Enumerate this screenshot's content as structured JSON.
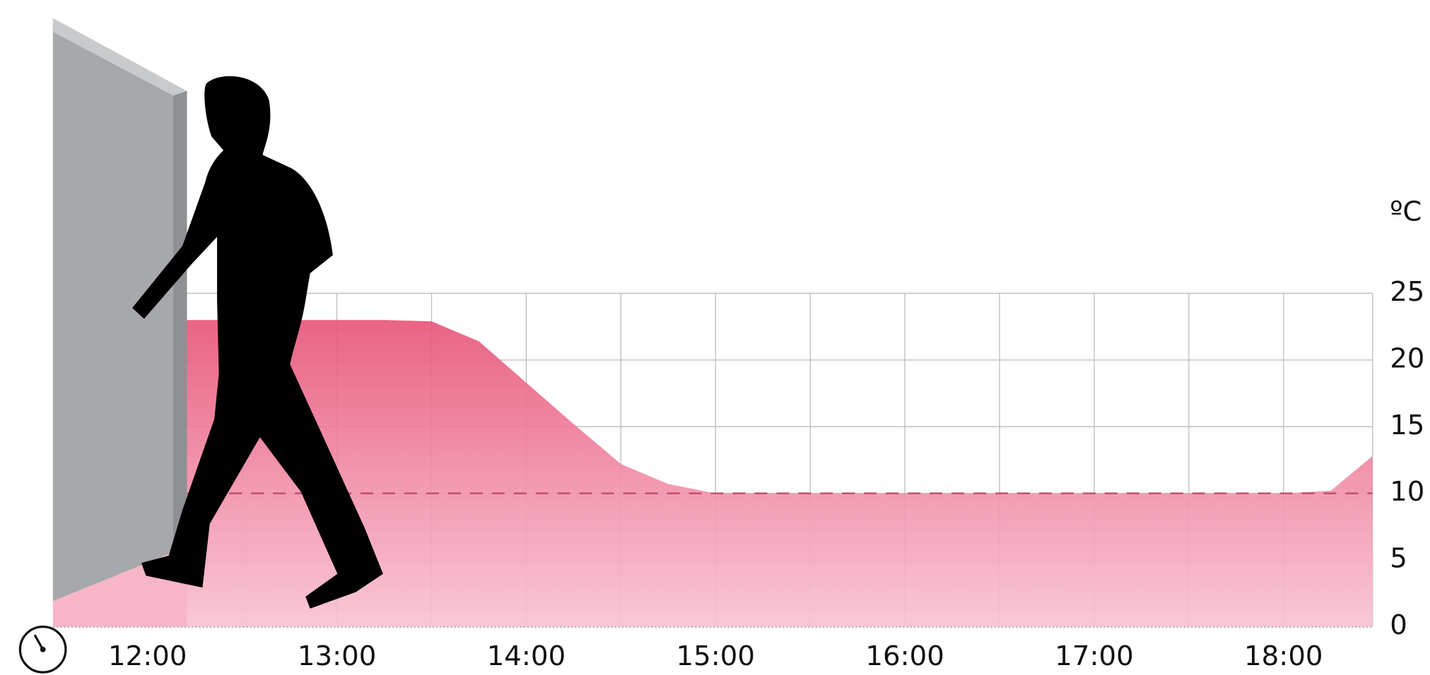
{
  "chart_data": {
    "type": "area",
    "y_unit": "ºC",
    "x": [
      12.2,
      12.5,
      13,
      13.25,
      13.5,
      13.75,
      14,
      14.25,
      14.5,
      14.75,
      15,
      16,
      17,
      18,
      18.25,
      18.47
    ],
    "values": [
      23,
      23,
      23,
      23,
      22.9,
      21.4,
      18.3,
      15.2,
      12.2,
      10.7,
      10,
      10,
      10,
      10,
      10.2,
      12.8
    ],
    "color_top": "#e8567a",
    "color_bottom": "#f9c3d3",
    "xlim": [
      11.5,
      18.47
    ],
    "ylim": [
      0,
      25
    ],
    "xticks": [
      {
        "value": 12,
        "label": "12:00"
      },
      {
        "value": 13,
        "label": "13:00"
      },
      {
        "value": 14,
        "label": "14:00"
      },
      {
        "value": 15,
        "label": "15:00"
      },
      {
        "value": 16,
        "label": "16:00"
      },
      {
        "value": 17,
        "label": "17:00"
      },
      {
        "value": 18,
        "label": "18:00"
      }
    ],
    "x_minor_ticks": [
      12.5,
      13.5,
      14.5,
      15.5,
      16.5,
      17.5
    ],
    "yticks": [
      0,
      5,
      10,
      15,
      20,
      25
    ],
    "grid": true,
    "reference_line": {
      "value": 10,
      "style": "dashed",
      "color": "#c0506a"
    }
  }
}
